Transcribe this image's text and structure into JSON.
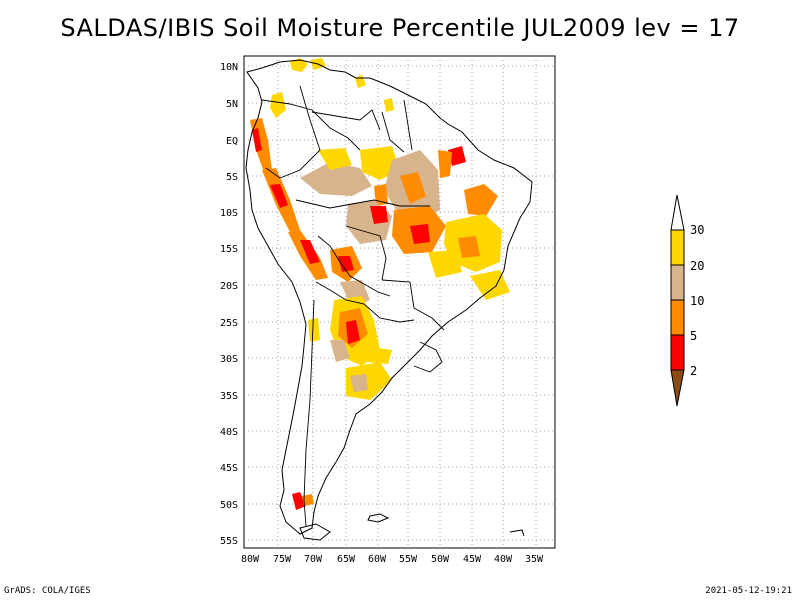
{
  "title": "SALDAS/IBIS Soil Moisture Percentile JUL2009 lev = 17",
  "map": {
    "lat_labels": [
      "10N",
      "5N",
      "EQ",
      "5S",
      "10S",
      "15S",
      "20S",
      "25S",
      "30S",
      "35S",
      "40S",
      "45S",
      "50S",
      "55S"
    ],
    "lon_labels": [
      "80W",
      "75W",
      "70W",
      "65W",
      "60W",
      "55W",
      "50W",
      "45W",
      "40W",
      "35W"
    ],
    "lat_range": [
      -56,
      12
    ],
    "lon_range": [
      -80.5,
      -33
    ],
    "grid": true
  },
  "legend": {
    "labels": [
      "2",
      "5",
      "10",
      "20",
      "30"
    ],
    "colors": [
      "#8b4a14",
      "#ff0000",
      "#ff8c00",
      "#d8b48c",
      "#ffd700",
      "#ffffff"
    ]
  },
  "footer": {
    "left": "GrADS: COLA/IGES",
    "right": "2021-05-12-19:21"
  }
}
